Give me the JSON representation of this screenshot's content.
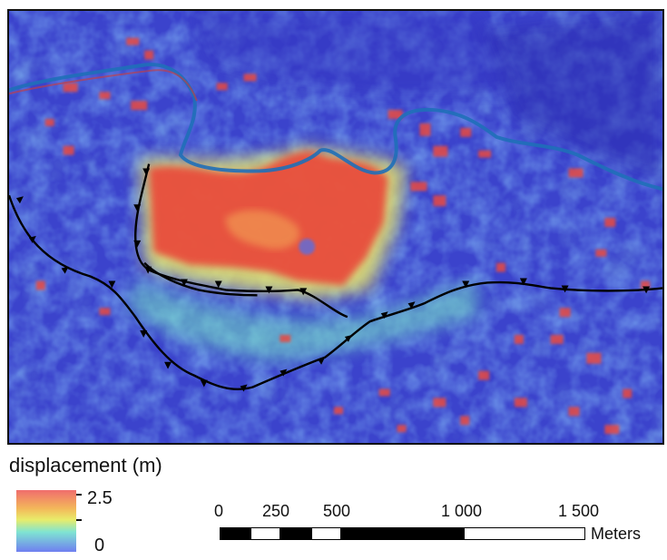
{
  "legend": {
    "title": "displacement (m)",
    "max_label": "2.5",
    "min_label": "0",
    "colors": [
      "#f06d6d",
      "#f3b85a",
      "#e8ec6a",
      "#7fe4d2",
      "#6f7ff0"
    ]
  },
  "scale": {
    "labels": [
      "0",
      "250",
      "500",
      "1 000",
      "1 500"
    ],
    "units": "Meters"
  },
  "map": {
    "background_color": "#3a3fc8",
    "river_color": "#1f6fb8",
    "fault_color": "#000000",
    "hotspot_color": "#e8493f"
  }
}
